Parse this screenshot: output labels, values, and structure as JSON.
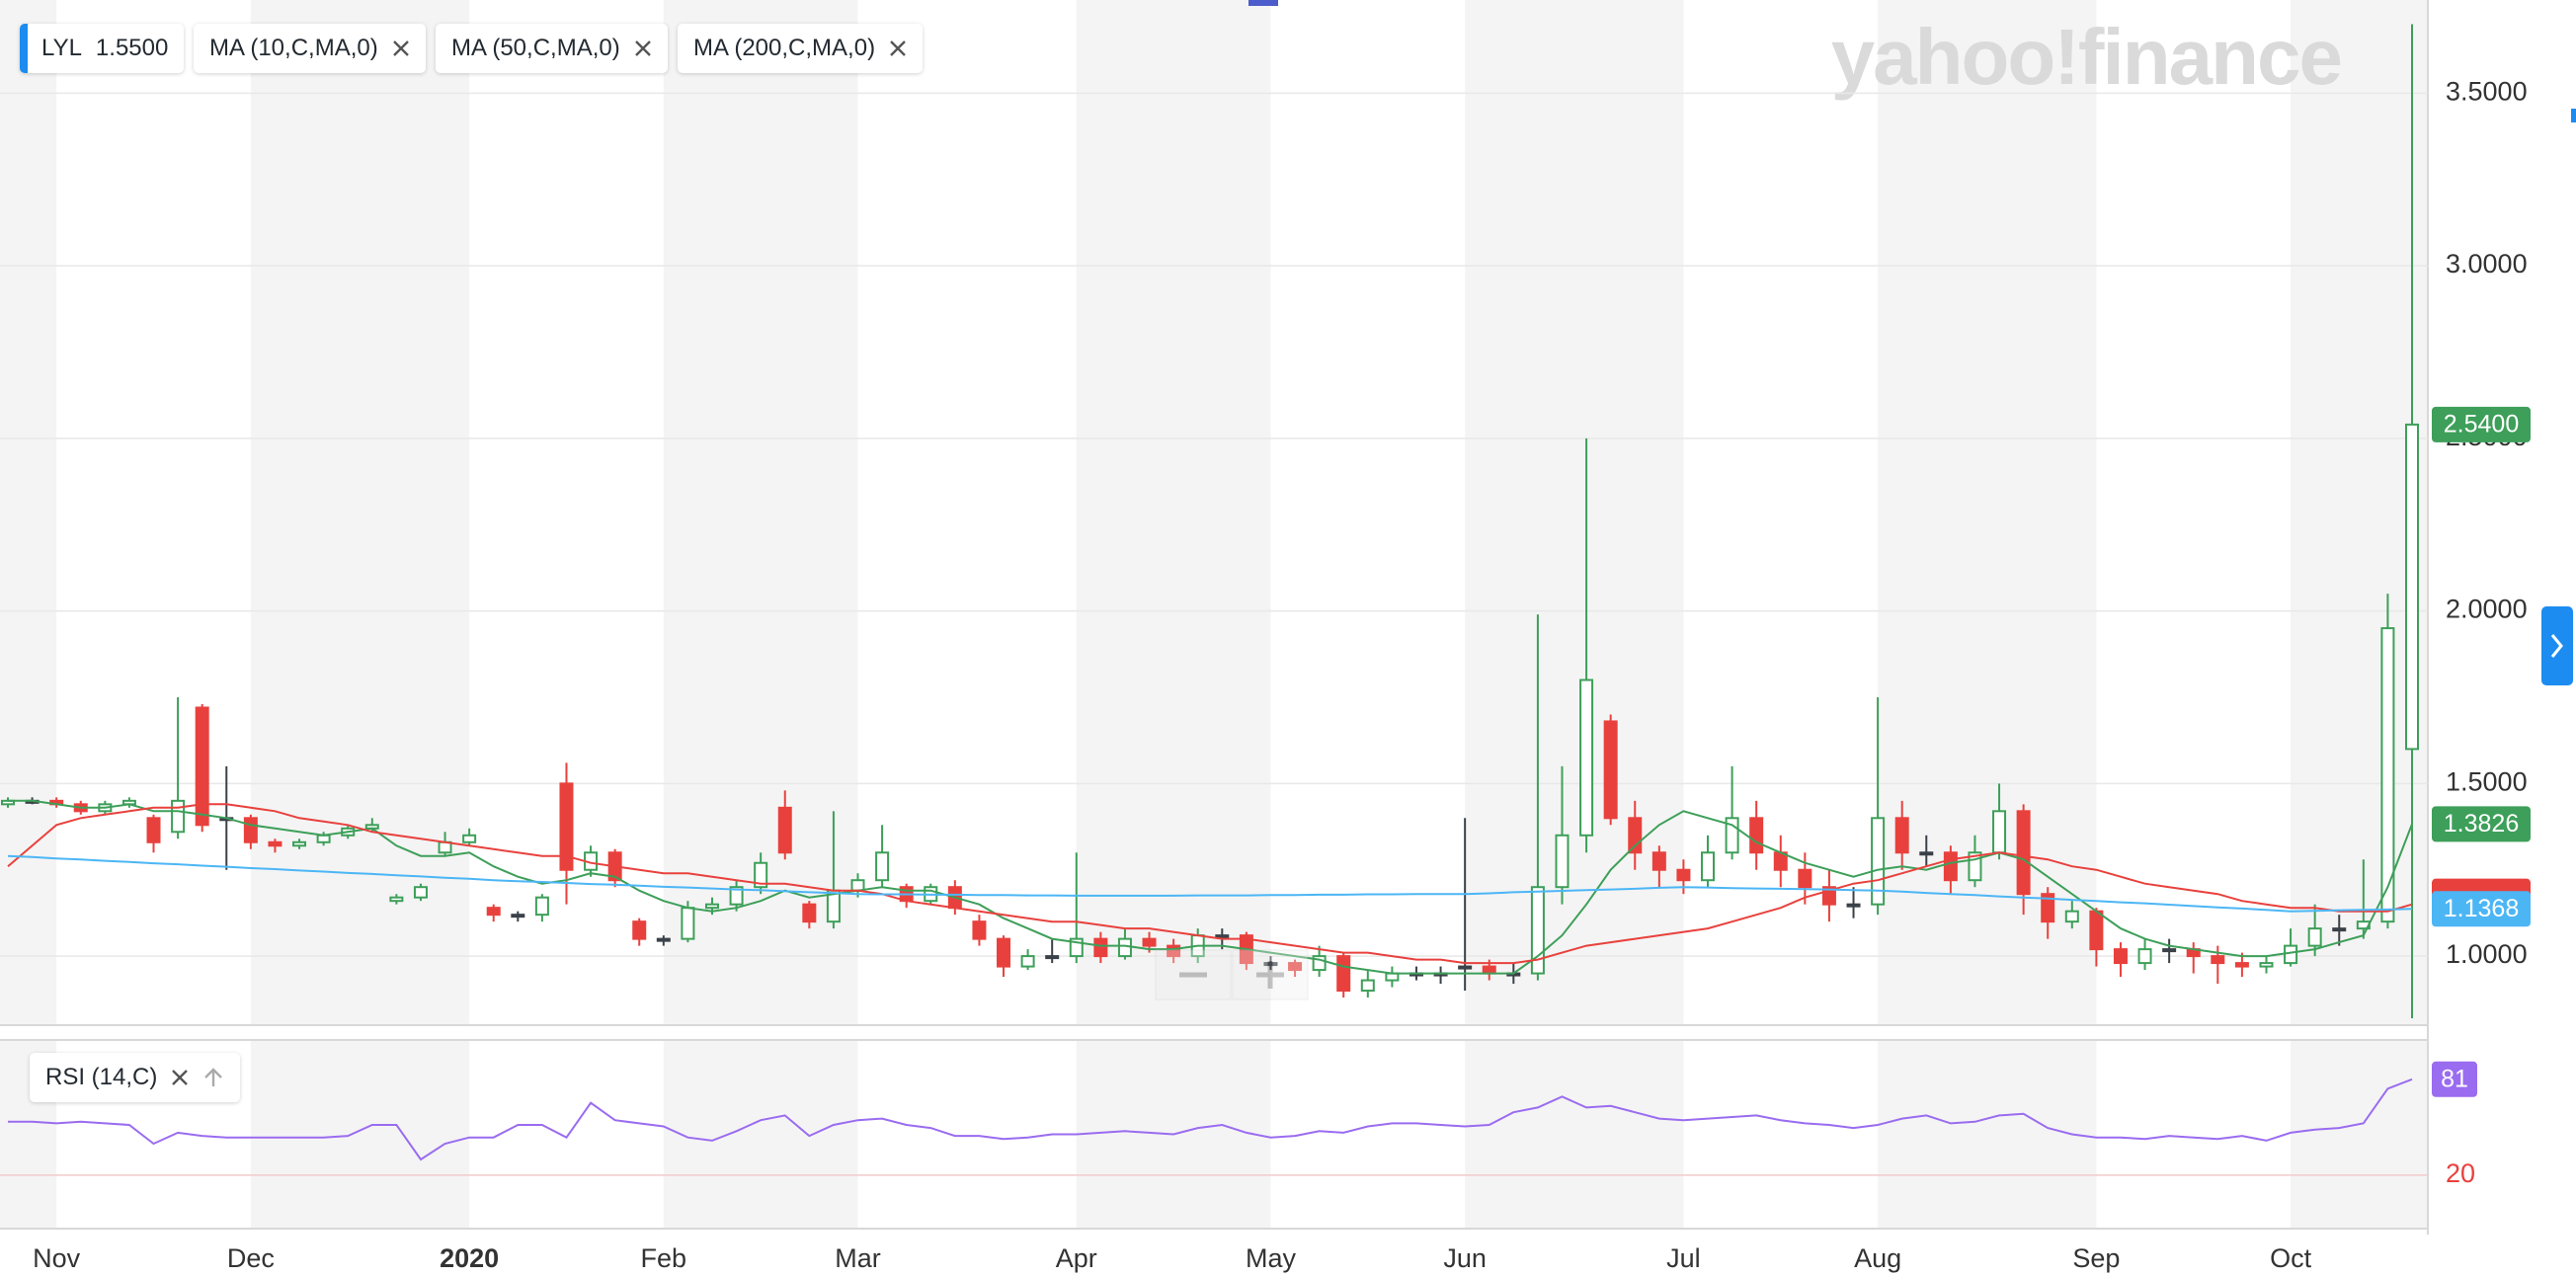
{
  "chart_data": [
    {
      "type": "candlestick",
      "symbol": "LYL",
      "legend_value": "1.5500",
      "watermark": "yahoo!finance",
      "categories": [
        null,
        null,
        "Nov",
        null,
        null,
        null,
        null,
        null,
        null,
        null,
        "Dec",
        null,
        null,
        null,
        null,
        null,
        null,
        null,
        null,
        "2020",
        null,
        null,
        null,
        null,
        null,
        null,
        null,
        "Feb",
        null,
        null,
        null,
        null,
        null,
        null,
        null,
        "Mar",
        null,
        null,
        null,
        null,
        null,
        null,
        null,
        null,
        "Apr",
        null,
        null,
        null,
        null,
        null,
        null,
        null,
        "May",
        null,
        null,
        null,
        null,
        null,
        null,
        null,
        "Jun",
        null,
        null,
        null,
        null,
        null,
        null,
        null,
        null,
        "Jul",
        null,
        null,
        null,
        null,
        null,
        null,
        null,
        "Aug",
        null,
        null,
        null,
        null,
        null,
        null,
        null,
        null,
        "Sep",
        null,
        null,
        null,
        null,
        null,
        null,
        null,
        "Oct",
        null,
        null,
        null,
        null,
        null
      ],
      "open": [
        1.44,
        1.45,
        1.45,
        1.44,
        1.42,
        1.44,
        1.4,
        1.36,
        1.72,
        1.4,
        1.4,
        1.33,
        1.32,
        1.33,
        1.35,
        1.37,
        1.16,
        1.17,
        1.3,
        1.33,
        1.14,
        1.12,
        1.12,
        1.5,
        1.25,
        1.3,
        1.1,
        1.05,
        1.05,
        1.14,
        1.15,
        1.2,
        1.43,
        1.15,
        1.1,
        1.19,
        1.22,
        1.2,
        1.16,
        1.2,
        1.1,
        1.05,
        0.97,
        1.0,
        1.0,
        1.05,
        1.0,
        1.05,
        1.03,
        1.0,
        1.06,
        1.06,
        0.98,
        0.98,
        0.96,
        1.0,
        0.9,
        0.93,
        0.95,
        0.95,
        0.97,
        0.97,
        0.95,
        0.95,
        1.2,
        1.35,
        1.68,
        1.4,
        1.3,
        1.25,
        1.22,
        1.3,
        1.4,
        1.3,
        1.25,
        1.2,
        1.15,
        1.15,
        1.4,
        1.3,
        1.3,
        1.22,
        1.3,
        1.42,
        1.18,
        1.1,
        1.13,
        1.02,
        0.98,
        1.02,
        1.02,
        1.0,
        0.98,
        0.97,
        0.98,
        1.03,
        1.08,
        1.08,
        1.1,
        1.6
      ],
      "high": [
        1.46,
        1.46,
        1.46,
        1.45,
        1.45,
        1.46,
        1.41,
        1.75,
        1.73,
        1.55,
        1.41,
        1.34,
        1.34,
        1.36,
        1.38,
        1.4,
        1.18,
        1.21,
        1.36,
        1.37,
        1.15,
        1.13,
        1.18,
        1.56,
        1.32,
        1.31,
        1.11,
        1.06,
        1.16,
        1.17,
        1.22,
        1.3,
        1.48,
        1.16,
        1.42,
        1.24,
        1.38,
        1.21,
        1.21,
        1.22,
        1.12,
        1.06,
        1.02,
        1.05,
        1.3,
        1.07,
        1.08,
        1.07,
        1.05,
        1.08,
        1.08,
        1.07,
        1.0,
        0.99,
        1.03,
        1.01,
        0.96,
        0.97,
        0.97,
        0.97,
        1.4,
        0.99,
        0.98,
        1.99,
        1.55,
        2.5,
        1.7,
        1.45,
        1.32,
        1.28,
        1.35,
        1.55,
        1.45,
        1.35,
        1.3,
        1.25,
        1.2,
        1.75,
        1.45,
        1.35,
        1.32,
        1.35,
        1.5,
        1.44,
        1.2,
        1.16,
        1.14,
        1.04,
        1.05,
        1.05,
        1.04,
        1.03,
        1.01,
        1.0,
        1.08,
        1.15,
        1.12,
        1.28,
        2.05,
        3.7
      ],
      "low": [
        1.43,
        1.44,
        1.43,
        1.41,
        1.41,
        1.43,
        1.3,
        1.34,
        1.36,
        1.25,
        1.31,
        1.3,
        1.31,
        1.32,
        1.34,
        1.36,
        1.15,
        1.16,
        1.29,
        1.32,
        1.1,
        1.1,
        1.1,
        1.15,
        1.23,
        1.2,
        1.03,
        1.03,
        1.04,
        1.12,
        1.13,
        1.18,
        1.28,
        1.08,
        1.08,
        1.17,
        1.2,
        1.14,
        1.15,
        1.12,
        1.03,
        0.94,
        0.96,
        0.98,
        0.98,
        0.98,
        0.99,
        1.01,
        0.98,
        0.98,
        1.02,
        0.96,
        0.96,
        0.94,
        0.94,
        0.88,
        0.88,
        0.91,
        0.93,
        0.92,
        0.9,
        0.93,
        0.92,
        0.93,
        1.15,
        1.3,
        1.38,
        1.25,
        1.2,
        1.18,
        1.2,
        1.28,
        1.25,
        1.2,
        1.15,
        1.1,
        1.11,
        1.12,
        1.25,
        1.26,
        1.18,
        1.2,
        1.28,
        1.12,
        1.05,
        1.08,
        0.97,
        0.94,
        0.96,
        0.98,
        0.95,
        0.92,
        0.94,
        0.95,
        0.97,
        1.0,
        1.03,
        1.05,
        1.08,
        0.82
      ],
      "close": [
        1.45,
        1.45,
        1.44,
        1.42,
        1.44,
        1.45,
        1.33,
        1.45,
        1.38,
        1.4,
        1.33,
        1.32,
        1.33,
        1.35,
        1.37,
        1.38,
        1.17,
        1.2,
        1.33,
        1.35,
        1.12,
        1.12,
        1.17,
        1.25,
        1.3,
        1.22,
        1.05,
        1.05,
        1.14,
        1.15,
        1.2,
        1.27,
        1.3,
        1.1,
        1.19,
        1.22,
        1.3,
        1.16,
        1.2,
        1.14,
        1.05,
        0.97,
        1.0,
        1.0,
        1.05,
        1.0,
        1.05,
        1.03,
        1.0,
        1.06,
        1.06,
        0.98,
        0.98,
        0.96,
        1.0,
        0.9,
        0.93,
        0.95,
        0.95,
        0.95,
        0.97,
        0.95,
        0.95,
        1.2,
        1.35,
        1.8,
        1.4,
        1.3,
        1.25,
        1.22,
        1.3,
        1.4,
        1.3,
        1.25,
        1.2,
        1.15,
        1.15,
        1.4,
        1.3,
        1.3,
        1.22,
        1.3,
        1.42,
        1.18,
        1.1,
        1.13,
        1.02,
        0.98,
        1.02,
        1.02,
        1.0,
        0.98,
        0.97,
        0.98,
        1.03,
        1.08,
        1.08,
        1.1,
        1.95,
        2.54
      ],
      "close_label": "2.5400",
      "up_color": "#3d9f59",
      "down_color": "#e8413d",
      "flat_color": "#3b4148",
      "series": [
        {
          "name": "MA (10,C,MA,0)",
          "color": "#3d9f59",
          "last_label": "1.3826",
          "values": [
            1.45,
            1.45,
            1.44,
            1.43,
            1.43,
            1.44,
            1.42,
            1.42,
            1.41,
            1.4,
            1.38,
            1.37,
            1.36,
            1.35,
            1.36,
            1.37,
            1.32,
            1.29,
            1.29,
            1.3,
            1.26,
            1.23,
            1.21,
            1.22,
            1.24,
            1.23,
            1.19,
            1.16,
            1.14,
            1.13,
            1.14,
            1.16,
            1.19,
            1.17,
            1.18,
            1.19,
            1.2,
            1.19,
            1.19,
            1.17,
            1.15,
            1.11,
            1.08,
            1.05,
            1.04,
            1.03,
            1.03,
            1.02,
            1.02,
            1.03,
            1.03,
            1.02,
            1.01,
            1.0,
            0.99,
            0.97,
            0.96,
            0.95,
            0.95,
            0.95,
            0.95,
            0.95,
            0.95,
            1.0,
            1.06,
            1.15,
            1.25,
            1.32,
            1.38,
            1.42,
            1.4,
            1.38,
            1.33,
            1.3,
            1.27,
            1.25,
            1.23,
            1.25,
            1.26,
            1.25,
            1.27,
            1.28,
            1.3,
            1.28,
            1.23,
            1.18,
            1.13,
            1.08,
            1.05,
            1.03,
            1.02,
            1.01,
            1.0,
            1.0,
            1.01,
            1.02,
            1.04,
            1.06,
            1.2,
            1.3826
          ]
        },
        {
          "name": "MA (50,C,MA,0)",
          "color": "#e8413d",
          "values": [
            1.26,
            1.32,
            1.38,
            1.4,
            1.41,
            1.42,
            1.43,
            1.43,
            1.44,
            1.44,
            1.43,
            1.42,
            1.4,
            1.39,
            1.38,
            1.36,
            1.35,
            1.34,
            1.33,
            1.32,
            1.31,
            1.3,
            1.29,
            1.29,
            1.27,
            1.26,
            1.25,
            1.24,
            1.24,
            1.23,
            1.22,
            1.21,
            1.21,
            1.2,
            1.19,
            1.19,
            1.18,
            1.16,
            1.15,
            1.14,
            1.13,
            1.12,
            1.11,
            1.1,
            1.1,
            1.09,
            1.08,
            1.08,
            1.07,
            1.06,
            1.05,
            1.05,
            1.04,
            1.03,
            1.02,
            1.01,
            1.01,
            1.0,
            0.99,
            0.99,
            0.98,
            0.98,
            0.98,
            0.99,
            1.01,
            1.03,
            1.04,
            1.05,
            1.06,
            1.07,
            1.08,
            1.1,
            1.12,
            1.14,
            1.17,
            1.19,
            1.21,
            1.22,
            1.24,
            1.26,
            1.28,
            1.29,
            1.3,
            1.29,
            1.28,
            1.26,
            1.25,
            1.23,
            1.21,
            1.2,
            1.19,
            1.18,
            1.16,
            1.15,
            1.14,
            1.14,
            1.13,
            1.13,
            1.13,
            1.15
          ]
        },
        {
          "name": "MA (200,C,MA,0)",
          "color": "#4cb6f5",
          "last_label": "1.1368",
          "values": [
            1.29,
            1.287,
            1.283,
            1.28,
            1.276,
            1.273,
            1.269,
            1.266,
            1.262,
            1.259,
            1.255,
            1.252,
            1.248,
            1.245,
            1.241,
            1.238,
            1.234,
            1.231,
            1.227,
            1.224,
            1.22,
            1.217,
            1.215,
            1.212,
            1.209,
            1.207,
            1.204,
            1.201,
            1.199,
            1.196,
            1.193,
            1.191,
            1.188,
            1.185,
            1.183,
            1.18,
            1.179,
            1.179,
            1.178,
            1.178,
            1.177,
            1.177,
            1.176,
            1.176,
            1.175,
            1.175,
            1.175,
            1.175,
            1.175,
            1.176,
            1.176,
            1.176,
            1.177,
            1.177,
            1.178,
            1.178,
            1.179,
            1.179,
            1.18,
            1.18,
            1.18,
            1.182,
            1.185,
            1.187,
            1.189,
            1.191,
            1.193,
            1.195,
            1.198,
            1.2,
            1.199,
            1.197,
            1.196,
            1.195,
            1.194,
            1.193,
            1.191,
            1.19,
            1.187,
            1.183,
            1.18,
            1.177,
            1.173,
            1.17,
            1.167,
            1.163,
            1.16,
            1.156,
            1.153,
            1.149,
            1.145,
            1.141,
            1.138,
            1.134,
            1.13,
            1.131,
            1.133,
            1.134,
            1.135,
            1.1368
          ]
        }
      ],
      "ylim": [
        0.8,
        3.77
      ],
      "yticks": [
        {
          "value": 1,
          "label": "1.0000"
        },
        {
          "value": 1.5,
          "label": "1.5000"
        },
        {
          "value": 2,
          "label": "2.0000"
        },
        {
          "value": 2.5,
          "label": "2.5000"
        },
        {
          "value": 3,
          "label": "3.0000"
        },
        {
          "value": 3.5,
          "label": "3.5000"
        }
      ],
      "grid": true
    },
    {
      "type": "line",
      "series": [
        {
          "name": "RSI (14,C)",
          "color": "#9a6cf0",
          "values": [
            54,
            54,
            53,
            54,
            53,
            52,
            40,
            47,
            45,
            44,
            44,
            44,
            44,
            44,
            45,
            52,
            52,
            30,
            40,
            44,
            44,
            52,
            52,
            44,
            66,
            55,
            53,
            51,
            44,
            42,
            48,
            55,
            58,
            45,
            52,
            55,
            56,
            52,
            50,
            45,
            45,
            43,
            44,
            46,
            46,
            47,
            48,
            47,
            46,
            50,
            52,
            47,
            44,
            45,
            48,
            47,
            51,
            53,
            53,
            52,
            51,
            52,
            60,
            63,
            70,
            63,
            64,
            60,
            56,
            55,
            56,
            57,
            58,
            55,
            53,
            52,
            50,
            52,
            56,
            58,
            53,
            54,
            58,
            59,
            50,
            46,
            44,
            44,
            43,
            45,
            44,
            43,
            45,
            42,
            47,
            49,
            50,
            53,
            75,
            81
          ]
        }
      ],
      "ylim": [
        -14,
        106
      ],
      "yticks": [
        20
      ],
      "tick_color": "#e8413d"
    }
  ]
}
